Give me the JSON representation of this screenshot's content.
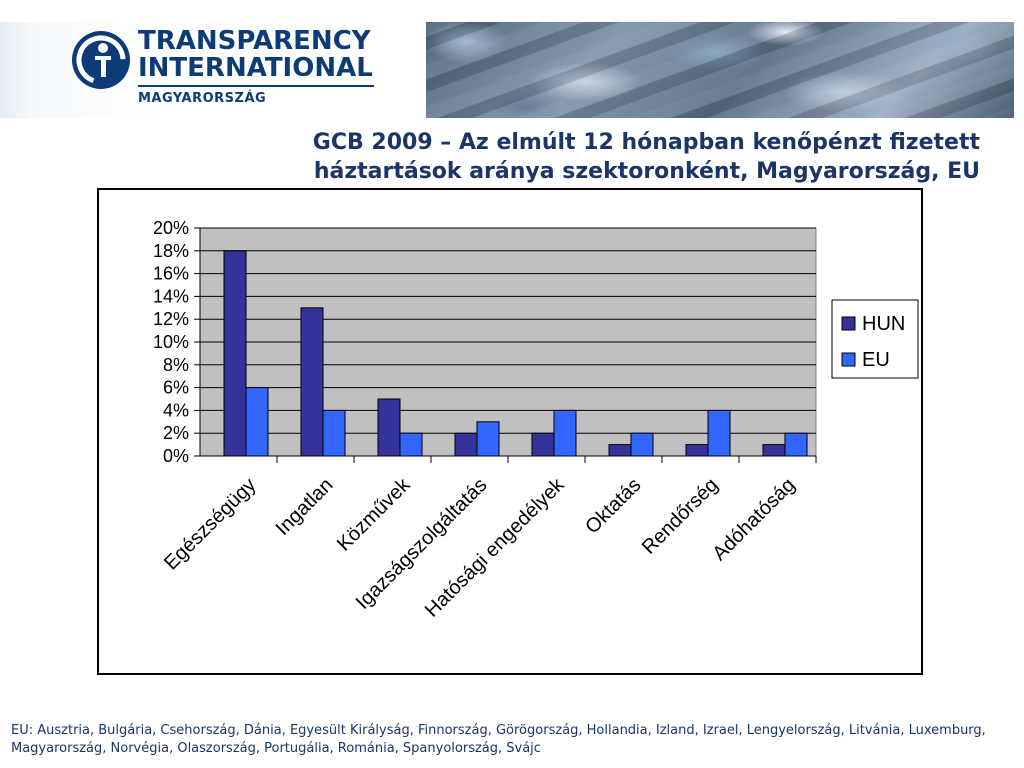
{
  "header": {
    "logo": {
      "line1": "TRANSPARENCY",
      "line2": "INTERNATIONAL",
      "line3": "MAGYARORSZÁG",
      "icon": "ti-logo-icon"
    },
    "banner_image": "stone-texture-banner"
  },
  "title_line1": "GCB 2009 – Az elmúlt 12 hónapban kenőpénzt fizetett",
  "title_line2": "háztartások aránya szektoronként, Magyarország, EU",
  "chart_data": {
    "type": "bar",
    "title": "GCB 2009 – Az elmúlt 12 hónapban kenőpénzt fizetett háztartások aránya szektoronként, Magyarország, EU",
    "categories": [
      "Egészségügy",
      "Ingatlan",
      "Közművek",
      "Igazságszolgáltatás",
      "Hatósági engedélyek",
      "Oktatás",
      "Rendőrség",
      "Adóhatóság"
    ],
    "series": [
      {
        "name": "HUN",
        "values": [
          18,
          13,
          5,
          2,
          2,
          1,
          1,
          1
        ],
        "color": "#333399"
      },
      {
        "name": "EU",
        "values": [
          6,
          4,
          2,
          3,
          4,
          2,
          4,
          2
        ],
        "color": "#3366ff"
      }
    ],
    "ylim": [
      0,
      20
    ],
    "yticks": [
      "0%",
      "2%",
      "4%",
      "6%",
      "8%",
      "10%",
      "12%",
      "14%",
      "16%",
      "18%",
      "20%"
    ],
    "xlabel": "",
    "ylabel": "",
    "grid": true,
    "plot_background": "#c0c0c0",
    "legend_position": "right"
  },
  "footnote": "EU: Ausztria, Bulgária, Csehország, Dánia, Egyesült Királyság, Finnország, Görögország, Hollandia, Izland, Izrael, Lengyelország, Litvánia, Luxemburg, Magyarország, Norvégia, Olaszország,  Portugália, Románia, Spanyolország, Svájc"
}
